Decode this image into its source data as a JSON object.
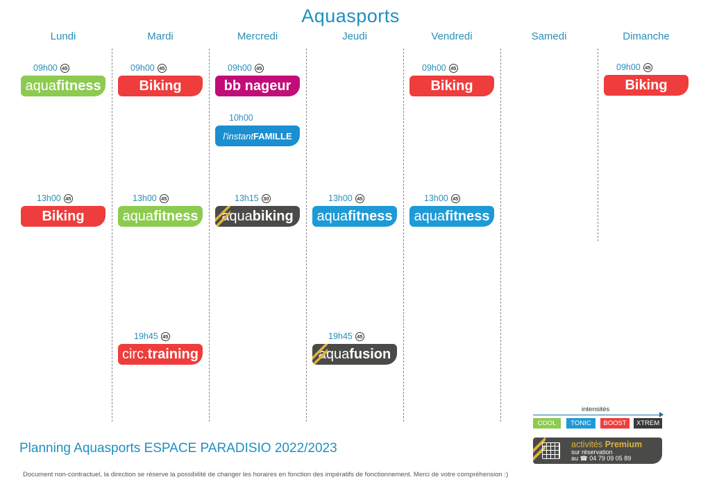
{
  "title": "Aquasports",
  "days": [
    "Lundi",
    "Mardi",
    "Mercredi",
    "Jeudi",
    "Vendredi",
    "Samedi",
    "Dimanche"
  ],
  "sessions": {
    "lundi_0900": {
      "time": "09h00",
      "duration": "45",
      "light": "aqua",
      "bold": "fitness",
      "color": "#8ccb4f"
    },
    "mardi_0900": {
      "time": "09h00",
      "duration": "45",
      "light": "",
      "bold": "Biking",
      "color": "#ee3d3c"
    },
    "mercredi_0900": {
      "time": "09h00",
      "duration": "45",
      "light": "bb nageur",
      "bold": "",
      "color": "#c20d78"
    },
    "mercredi_1000": {
      "time": "10h00",
      "light": "l'instant ",
      "bold": "FAMILLE",
      "color": "#1b8fd0"
    },
    "vendredi_0900": {
      "time": "09h00",
      "duration": "45",
      "light": "",
      "bold": "Biking",
      "color": "#ee3d3c"
    },
    "dimanche_0900": {
      "time": "09h00",
      "duration": "45",
      "light": "",
      "bold": "Biking",
      "color": "#ee3d3c"
    },
    "lundi_1300": {
      "time": "13h00",
      "duration": "45",
      "light": "",
      "bold": "Biking",
      "color": "#ee3d3c"
    },
    "mardi_1300": {
      "time": "13h00",
      "duration": "45",
      "light": "aqua",
      "bold": "fitness",
      "color": "#8ccb4f"
    },
    "mercredi_1315": {
      "time": "13h15",
      "duration": "30",
      "light": "aqua",
      "bold": "biking",
      "color": "#4a4a48",
      "premium": true
    },
    "jeudi_1300": {
      "time": "13h00",
      "duration": "45",
      "light": "aqua",
      "bold": "fitness",
      "color": "#1e9ad6"
    },
    "vendredi_1300": {
      "time": "13h00",
      "duration": "45",
      "light": "aqua",
      "bold": "fitness",
      "color": "#1e9ad6"
    },
    "mardi_1945": {
      "time": "19h45",
      "duration": "45",
      "light": "circ. ",
      "bold": "training",
      "color": "#ee3d3c"
    },
    "jeudi_1945": {
      "time": "19h45",
      "duration": "45",
      "light": "aqua",
      "bold": "fusion",
      "color": "#4a4a48",
      "premium": true
    }
  },
  "legend": {
    "label": "intensités",
    "levels": [
      {
        "name": "COOL",
        "color": "#8ccb4f"
      },
      {
        "name": "TONIC",
        "color": "#1e9ad6"
      },
      {
        "name": "BOOST",
        "color": "#ee3d3c"
      },
      {
        "name": "XTREM",
        "color": "#3a3a3a"
      }
    ]
  },
  "premium": {
    "line1_light": "activités ",
    "line1_bold": "Premium",
    "line2": "sur réservation",
    "line3": "au ☎ 04 79 09 05 89",
    "icon": "calendar-icon"
  },
  "footer": {
    "title": "Planning Aquasports ESPACE PARADISIO 2022/2023",
    "disclaimer": "Document non-contractuel, la direction se réserve la possibilité de changer les horaires en fonction des impératifs de fonctionnement. Merci de votre compréhension :)"
  }
}
